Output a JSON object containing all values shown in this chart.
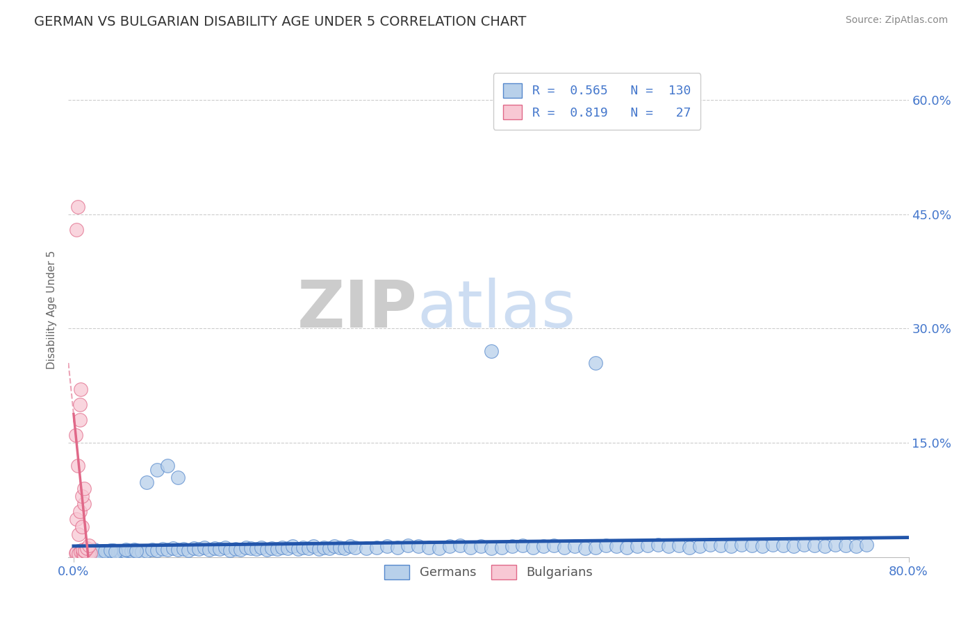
{
  "title": "GERMAN VS BULGARIAN DISABILITY AGE UNDER 5 CORRELATION CHART",
  "source_text": "Source: ZipAtlas.com",
  "ylabel": "Disability Age Under 5",
  "ytick_labels": [
    "15.0%",
    "30.0%",
    "45.0%",
    "60.0%"
  ],
  "ytick_values": [
    0.15,
    0.3,
    0.45,
    0.6
  ],
  "xlim": [
    0.0,
    0.8
  ],
  "ylim": [
    0.0,
    0.65
  ],
  "german_color": "#b8d0ea",
  "german_edge_color": "#5588cc",
  "bulgarian_color": "#f8c8d4",
  "bulgarian_edge_color": "#e06888",
  "german_line_color": "#2255aa",
  "bulgarian_line_color": "#e06888",
  "legend_german_label": "Germans",
  "legend_bulgarian_label": "Bulgarians",
  "R_german": 0.565,
  "N_german": 130,
  "R_bulgarian": 0.819,
  "N_bulgarian": 27,
  "watermark_zip": "ZIP",
  "watermark_atlas": "atlas",
  "title_fontsize": 14,
  "axis_label_fontsize": 11,
  "tick_label_color": "#4477cc",
  "grid_color": "#cccccc",
  "background_color": "#ffffff",
  "german_x": [
    0.005,
    0.008,
    0.01,
    0.012,
    0.015,
    0.018,
    0.02,
    0.022,
    0.025,
    0.028,
    0.03,
    0.032,
    0.035,
    0.038,
    0.04,
    0.042,
    0.045,
    0.048,
    0.05,
    0.052,
    0.055,
    0.058,
    0.06,
    0.065,
    0.07,
    0.075,
    0.08,
    0.085,
    0.09,
    0.095,
    0.1,
    0.105,
    0.11,
    0.115,
    0.12,
    0.125,
    0.13,
    0.135,
    0.14,
    0.145,
    0.15,
    0.155,
    0.16,
    0.165,
    0.17,
    0.175,
    0.18,
    0.185,
    0.19,
    0.195,
    0.2,
    0.205,
    0.21,
    0.215,
    0.22,
    0.225,
    0.23,
    0.235,
    0.24,
    0.245,
    0.25,
    0.255,
    0.26,
    0.265,
    0.27,
    0.28,
    0.29,
    0.3,
    0.31,
    0.32,
    0.33,
    0.34,
    0.35,
    0.36,
    0.37,
    0.38,
    0.39,
    0.4,
    0.41,
    0.42,
    0.43,
    0.44,
    0.45,
    0.46,
    0.47,
    0.48,
    0.49,
    0.5,
    0.51,
    0.52,
    0.53,
    0.54,
    0.55,
    0.56,
    0.57,
    0.58,
    0.59,
    0.6,
    0.61,
    0.62,
    0.63,
    0.64,
    0.65,
    0.66,
    0.67,
    0.68,
    0.69,
    0.7,
    0.71,
    0.72,
    0.73,
    0.74,
    0.75,
    0.76,
    0.005,
    0.01,
    0.015,
    0.02,
    0.025,
    0.03,
    0.035,
    0.04,
    0.05,
    0.06,
    0.07,
    0.08,
    0.09,
    0.1,
    0.4,
    0.5
  ],
  "german_y": [
    0.005,
    0.003,
    0.004,
    0.006,
    0.005,
    0.007,
    0.004,
    0.006,
    0.005,
    0.008,
    0.006,
    0.007,
    0.005,
    0.009,
    0.007,
    0.008,
    0.006,
    0.008,
    0.007,
    0.009,
    0.008,
    0.01,
    0.009,
    0.007,
    0.008,
    0.01,
    0.009,
    0.011,
    0.01,
    0.012,
    0.01,
    0.011,
    0.009,
    0.012,
    0.011,
    0.013,
    0.01,
    0.012,
    0.011,
    0.013,
    0.009,
    0.011,
    0.01,
    0.013,
    0.012,
    0.011,
    0.013,
    0.01,
    0.012,
    0.011,
    0.013,
    0.012,
    0.014,
    0.011,
    0.013,
    0.012,
    0.014,
    0.011,
    0.013,
    0.012,
    0.014,
    0.013,
    0.012,
    0.014,
    0.013,
    0.012,
    0.013,
    0.014,
    0.013,
    0.015,
    0.014,
    0.013,
    0.012,
    0.014,
    0.015,
    0.013,
    0.014,
    0.012,
    0.013,
    0.014,
    0.015,
    0.013,
    0.014,
    0.015,
    0.013,
    0.014,
    0.012,
    0.013,
    0.015,
    0.014,
    0.013,
    0.014,
    0.015,
    0.016,
    0.014,
    0.015,
    0.013,
    0.014,
    0.016,
    0.015,
    0.014,
    0.016,
    0.015,
    0.014,
    0.016,
    0.015,
    0.014,
    0.016,
    0.015,
    0.014,
    0.016,
    0.015,
    0.014,
    0.016,
    0.008,
    0.009,
    0.007,
    0.01,
    0.006,
    0.008,
    0.009,
    0.007,
    0.01,
    0.008,
    0.098,
    0.115,
    0.12,
    0.105,
    0.27,
    0.255
  ],
  "bulgarian_x": [
    0.002,
    0.003,
    0.005,
    0.007,
    0.009,
    0.01,
    0.012,
    0.014,
    0.016,
    0.003,
    0.005,
    0.006,
    0.008,
    0.01,
    0.002,
    0.004,
    0.006,
    0.008,
    0.01,
    0.003,
    0.004,
    0.006,
    0.007,
    0.009,
    0.011,
    0.013,
    0.015
  ],
  "bulgarian_y": [
    0.005,
    0.006,
    0.004,
    0.007,
    0.005,
    0.003,
    0.006,
    0.004,
    0.005,
    0.05,
    0.03,
    0.06,
    0.04,
    0.07,
    0.16,
    0.12,
    0.18,
    0.08,
    0.09,
    0.43,
    0.46,
    0.2,
    0.22,
    0.01,
    0.008,
    0.012,
    0.015
  ]
}
